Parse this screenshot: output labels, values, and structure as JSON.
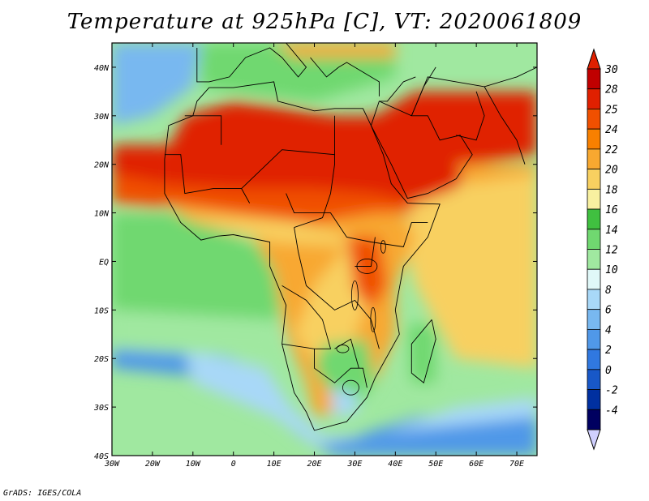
{
  "title": "Temperature at 925hPa [C], VT: 2020061809",
  "credit": "GrADS: IGES/COLA",
  "axes": {
    "lon_ticks": [
      "30W",
      "20W",
      "10W",
      "0",
      "10E",
      "20E",
      "30E",
      "40E",
      "50E",
      "60E",
      "70E"
    ],
    "lon_values": [
      -30,
      -20,
      -10,
      0,
      10,
      20,
      30,
      40,
      50,
      60,
      70
    ],
    "lat_ticks": [
      "40N",
      "30N",
      "20N",
      "10N",
      "EQ",
      "10S",
      "20S",
      "30S",
      "40S"
    ],
    "lat_values": [
      40,
      30,
      20,
      10,
      0,
      -10,
      -20,
      -30,
      -40
    ],
    "lon_range": [
      -30,
      75
    ],
    "lat_range": [
      -40,
      45
    ]
  },
  "colorbar": {
    "labels": [
      "30",
      "28",
      "25",
      "24",
      "22",
      "20",
      "18",
      "16",
      "14",
      "12",
      "10",
      "8",
      "6",
      "4",
      "2",
      "0",
      "-2",
      "-4"
    ],
    "colors": [
      "#c00000",
      "#e02000",
      "#f05000",
      "#f88000",
      "#f8a830",
      "#f8d060",
      "#f8f0a0",
      "#40c040",
      "#70d870",
      "#a0e8a0",
      "#e0f8f8",
      "#a8d8f8",
      "#78b8f0",
      "#5098e8",
      "#3078e0",
      "#1858c8",
      "#0030a0",
      "#000060"
    ],
    "lower_triangle_color": "#d0d0ff",
    "upper_triangle_color": "#e02000"
  },
  "field_colors": {
    "ocean_north_cool": "#78b8f0",
    "ocean_south_cold": "#5098e8",
    "ocean_mid": "#a0e8a0",
    "ocean_warm": "#f8d060",
    "sahara_hot": "#e02000",
    "sahel_hot": "#f05000",
    "savanna_warm": "#f8a830",
    "coast_green": "#70d870",
    "south_cool": "#a8d8f8"
  }
}
